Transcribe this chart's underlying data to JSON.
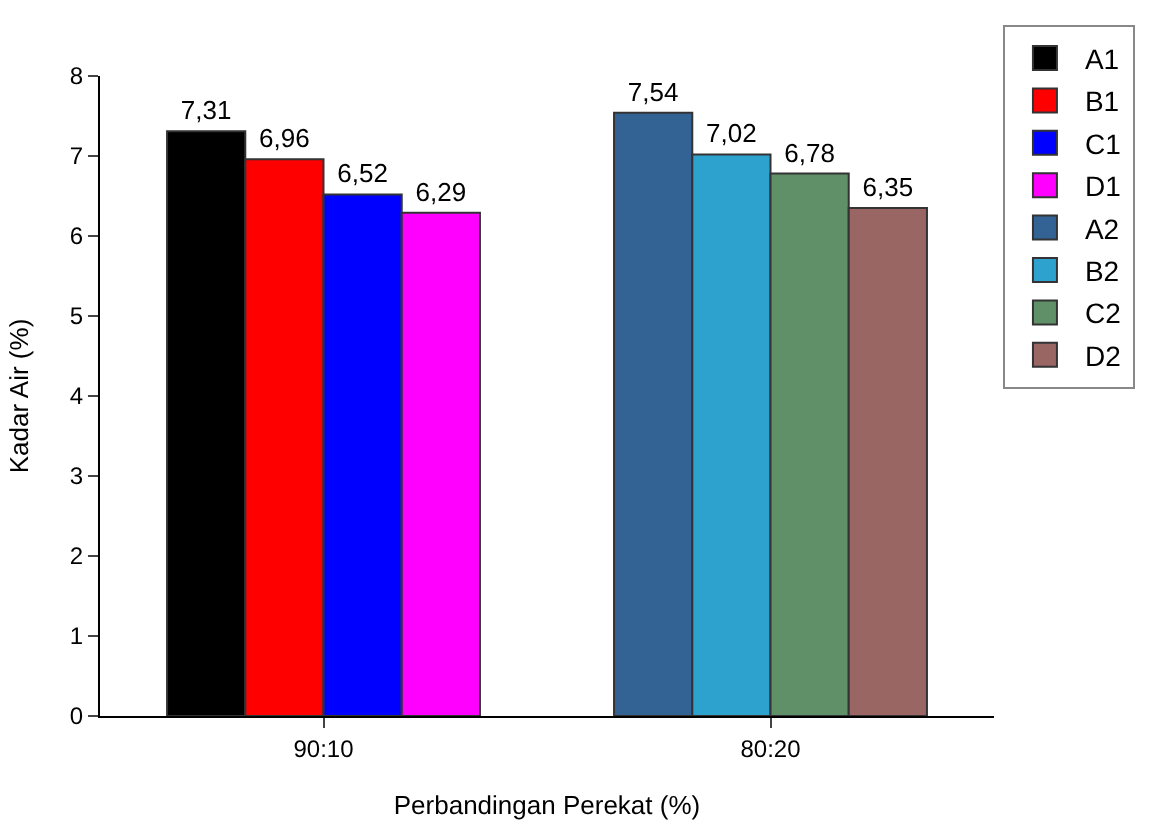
{
  "chart_data": {
    "type": "bar",
    "xlabel": "Perbandingan Perekat (%)",
    "ylabel": "Kadar Air (%)",
    "categories": [
      "90:10",
      "80:20"
    ],
    "series": [
      {
        "name": "A1",
        "color": "#000000",
        "values": [
          7.31,
          null
        ],
        "value_labels": [
          "7,31",
          null
        ]
      },
      {
        "name": "B1",
        "color": "#ff0000",
        "values": [
          6.96,
          null
        ],
        "value_labels": [
          "6,96",
          null
        ]
      },
      {
        "name": "C1",
        "color": "#0000ff",
        "values": [
          6.52,
          null
        ],
        "value_labels": [
          "6,52",
          null
        ]
      },
      {
        "name": "D1",
        "color": "#ff00ff",
        "values": [
          6.29,
          null
        ],
        "value_labels": [
          "6,29",
          null
        ]
      },
      {
        "name": "A2",
        "color": "#336394",
        "values": [
          null,
          7.54
        ],
        "value_labels": [
          null,
          "7,54"
        ]
      },
      {
        "name": "B2",
        "color": "#2da2cf",
        "values": [
          null,
          7.02
        ],
        "value_labels": [
          null,
          "7,02"
        ]
      },
      {
        "name": "C2",
        "color": "#5f9067",
        "values": [
          null,
          6.78
        ],
        "value_labels": [
          null,
          "6,78"
        ]
      },
      {
        "name": "D2",
        "color": "#996664",
        "values": [
          null,
          6.35
        ],
        "value_labels": [
          null,
          "6,35"
        ]
      }
    ],
    "ylim": [
      0,
      8
    ],
    "yticks": [
      0,
      1,
      2,
      3,
      4,
      5,
      6,
      7,
      8
    ],
    "grid": false,
    "legend": "top right"
  }
}
